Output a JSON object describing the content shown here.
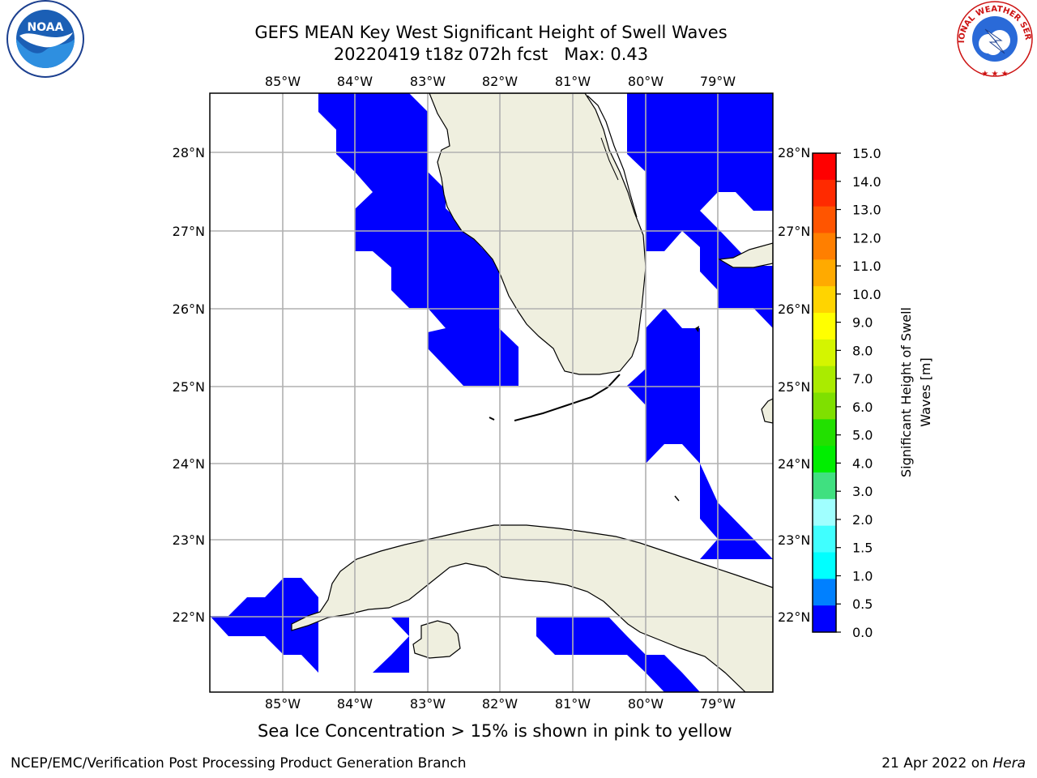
{
  "header": {
    "title_line1": "GEFS MEAN Key West Significant Height of Swell Waves",
    "title_line2": "20220419 t18z 072h fcst   Max: 0.43"
  },
  "logos": {
    "left": {
      "name": "noaa-logo",
      "text": "NOAA"
    },
    "right": {
      "name": "nws-logo",
      "text": "NATIONAL WEATHER SERVICE"
    }
  },
  "map": {
    "lon_labels": [
      "85°W",
      "84°W",
      "83°W",
      "82°W",
      "81°W",
      "80°W",
      "79°W"
    ],
    "lat_labels": [
      "28°N",
      "27°N",
      "26°N",
      "25°N",
      "24°N",
      "23°N",
      "22°N"
    ],
    "land_color": "#efefdf",
    "swell_color": "#0000ff",
    "grid_color": "#b0b0b0"
  },
  "colorbar": {
    "label": "Significant Height of Swell Waves [m]",
    "label_line1": "Significant Height of Swell",
    "label_line2": "Waves [m]",
    "ticks": [
      "15.0",
      "14.0",
      "13.0",
      "12.0",
      "11.0",
      "10.0",
      "9.0",
      "8.0",
      "7.0",
      "6.0",
      "5.0",
      "4.0",
      "3.0",
      "2.0",
      "1.5",
      "1.0",
      "0.5",
      "0.0"
    ],
    "colors": [
      "#ff0000",
      "#ff2a00",
      "#ff5500",
      "#ff7f00",
      "#ffaa00",
      "#ffd400",
      "#ffff00",
      "#d4f500",
      "#aaeb00",
      "#7fe000",
      "#22e000",
      "#00ee00",
      "#40e080",
      "#a0ffff",
      "#40ffff",
      "#00ffff",
      "#0080ff",
      "#0000ff"
    ]
  },
  "note": "Sea Ice Concentration > 15% is shown in pink to yellow",
  "footer": {
    "left": "NCEP/EMC/Verification Post Processing Product Generation Branch",
    "right_date": "21 Apr 2022 on ",
    "right_host": "Hera"
  }
}
